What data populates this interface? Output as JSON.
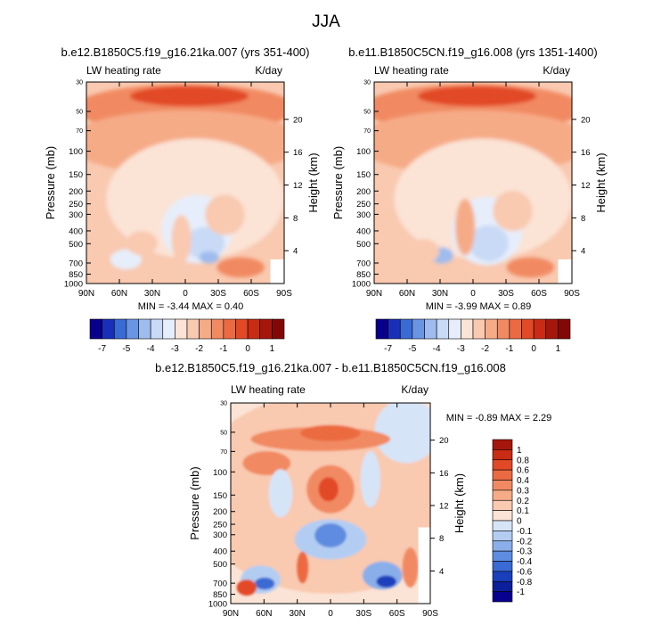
{
  "page_title": "JJA",
  "chart_data": [
    {
      "type": "heatmap",
      "title": "b.e12.B1850C5.f19_g16.21ka.007 (yrs 351-400)",
      "left_string": "LW heating rate",
      "right_string": "K/day",
      "xlabel": "",
      "ylabel": "Pressure (mb)",
      "ylabel_right": "Height (km)",
      "x_ticks": [
        "90N",
        "60N",
        "30N",
        "0",
        "30S",
        "60S",
        "90S"
      ],
      "x_values": [
        90,
        60,
        30,
        0,
        -30,
        -60,
        -90
      ],
      "y_ticks": [
        30,
        50,
        70,
        100,
        150,
        200,
        250,
        300,
        400,
        500,
        700,
        850,
        1000
      ],
      "y_scale": "log",
      "ylim": [
        30,
        1000
      ],
      "right_ticks": [
        20,
        16,
        12,
        8,
        4
      ],
      "stats": {
        "min_label": "MIN =",
        "min": "-3.44",
        "max_label": "MAX =",
        "max": "0.40"
      },
      "colorbar": {
        "orientation": "horizontal",
        "labels": [
          "-7",
          "-5",
          "-4",
          "-3",
          "-2",
          "-1",
          "0",
          "1"
        ],
        "colors": [
          "#08008c",
          "#1a2fb8",
          "#3a6ad3",
          "#6a95e3",
          "#9ebcee",
          "#c9daf6",
          "#e6eefb",
          "#fbe3d5",
          "#f9c9b0",
          "#f6ab87",
          "#f18a62",
          "#ec6a41",
          "#e24927",
          "#c92b14",
          "#a6170b",
          "#830707"
        ]
      },
      "grid": false
    },
    {
      "type": "heatmap",
      "title": "b.e11.B1850C5CN.f19_g16.008 (yrs 1351-1400)",
      "left_string": "LW heating rate",
      "right_string": "K/day",
      "xlabel": "",
      "ylabel": "Pressure (mb)",
      "ylabel_right": "Height (km)",
      "x_ticks": [
        "90N",
        "60N",
        "30N",
        "0",
        "30S",
        "60S",
        "90S"
      ],
      "x_values": [
        90,
        60,
        30,
        0,
        -30,
        -60,
        -90
      ],
      "y_ticks": [
        30,
        50,
        70,
        100,
        150,
        200,
        250,
        300,
        400,
        500,
        700,
        850,
        1000
      ],
      "y_scale": "log",
      "ylim": [
        30,
        1000
      ],
      "right_ticks": [
        20,
        16,
        12,
        8,
        4
      ],
      "stats": {
        "min_label": "MIN =",
        "min": "-3.99",
        "max_label": "MAX =",
        "max": "0.89"
      },
      "colorbar": {
        "orientation": "horizontal",
        "labels": [
          "-7",
          "-5",
          "-4",
          "-3",
          "-2",
          "-1",
          "0",
          "1"
        ],
        "colors": [
          "#08008c",
          "#1a2fb8",
          "#3a6ad3",
          "#6a95e3",
          "#9ebcee",
          "#c9daf6",
          "#e6eefb",
          "#fbe3d5",
          "#f9c9b0",
          "#f6ab87",
          "#f18a62",
          "#ec6a41",
          "#e24927",
          "#c92b14",
          "#a6170b",
          "#830707"
        ]
      },
      "grid": false
    },
    {
      "type": "heatmap",
      "title": "b.e12.B1850C5.f19_g16.21ka.007 - b.e11.B1850C5CN.f19_g16.008",
      "left_string": "LW heating rate",
      "right_string": "K/day",
      "xlabel": "",
      "ylabel": "Pressure (mb)",
      "ylabel_right": "Height (km)",
      "x_ticks": [
        "90N",
        "60N",
        "30N",
        "0",
        "30S",
        "60S",
        "90S"
      ],
      "x_values": [
        90,
        60,
        30,
        0,
        -30,
        -60,
        -90
      ],
      "y_ticks": [
        30,
        50,
        70,
        100,
        150,
        200,
        250,
        300,
        400,
        500,
        700,
        850,
        1000
      ],
      "y_scale": "log",
      "ylim": [
        30,
        1000
      ],
      "right_ticks": [
        20,
        16,
        12,
        8,
        4
      ],
      "stats": {
        "min_label": "MIN =",
        "min": "-0.89",
        "max_label": "MAX =",
        "max": "2.29"
      },
      "colorbar": {
        "orientation": "vertical",
        "labels": [
          "1",
          "0.8",
          "0.6",
          "0.4",
          "0.3",
          "0.2",
          "0.1",
          "0",
          "-0.1",
          "-0.2",
          "-0.3",
          "-0.4",
          "-0.6",
          "-0.8",
          "-1"
        ],
        "colors": [
          "#a6170b",
          "#c92b14",
          "#e24927",
          "#ec6a41",
          "#f18a62",
          "#f6ab87",
          "#f9c9b0",
          "#fbe3d5",
          "#d6e4f8",
          "#b3cdf2",
          "#8aaeea",
          "#5e8ce0",
          "#3a6ad3",
          "#1a3fbc",
          "#0c1e9a",
          "#08008c"
        ]
      },
      "grid": false
    }
  ]
}
